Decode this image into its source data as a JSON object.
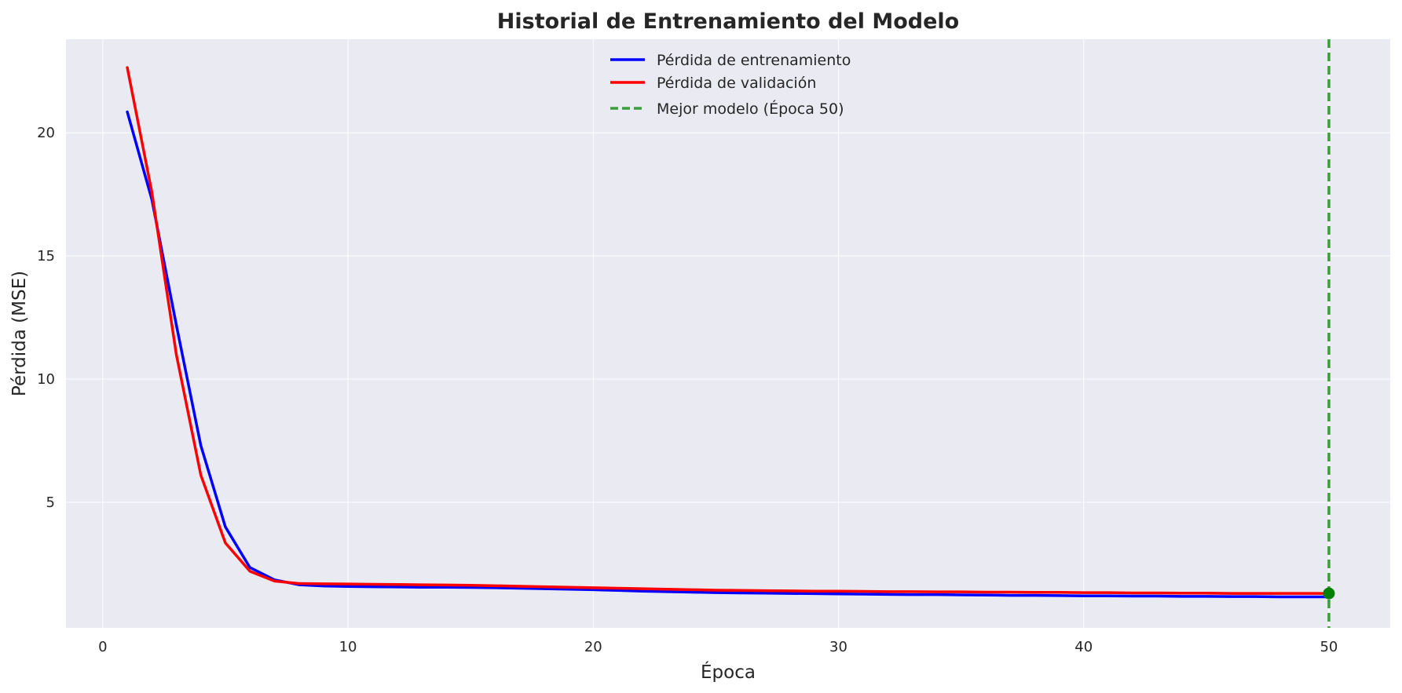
{
  "chart_data": {
    "type": "line",
    "title": "Historial de Entrenamiento del Modelo",
    "xlabel": "Época",
    "ylabel": "Pérdida (MSE)",
    "xlim": [
      -1.5,
      52.5
    ],
    "ylim": [
      -0.1,
      23.8
    ],
    "xticks": [
      0,
      10,
      20,
      30,
      40,
      50
    ],
    "yticks": [
      5,
      10,
      15,
      20
    ],
    "grid": true,
    "legend_position": "top-center",
    "background_color": "#eaeaf2",
    "x": [
      1,
      2,
      3,
      4,
      5,
      6,
      7,
      8,
      9,
      10,
      11,
      12,
      13,
      14,
      15,
      16,
      17,
      18,
      19,
      20,
      21,
      22,
      23,
      24,
      25,
      26,
      27,
      28,
      29,
      30,
      31,
      32,
      33,
      34,
      35,
      36,
      37,
      38,
      39,
      40,
      41,
      42,
      43,
      44,
      45,
      46,
      47,
      48,
      49,
      50
    ],
    "series": [
      {
        "name": "Pérdida de entrenamiento",
        "color": "#0000ff",
        "values": [
          20.85,
          17.3,
          12.2,
          7.3,
          4.0,
          2.35,
          1.85,
          1.65,
          1.6,
          1.58,
          1.57,
          1.56,
          1.55,
          1.55,
          1.54,
          1.53,
          1.51,
          1.49,
          1.47,
          1.45,
          1.42,
          1.39,
          1.37,
          1.35,
          1.33,
          1.32,
          1.31,
          1.3,
          1.29,
          1.28,
          1.27,
          1.26,
          1.25,
          1.25,
          1.24,
          1.23,
          1.22,
          1.22,
          1.21,
          1.2,
          1.2,
          1.19,
          1.19,
          1.18,
          1.18,
          1.17,
          1.17,
          1.16,
          1.16,
          1.16
        ]
      },
      {
        "name": "Pérdida de validación",
        "color": "#ff0000",
        "values": [
          22.65,
          17.6,
          11.0,
          6.1,
          3.35,
          2.2,
          1.8,
          1.7,
          1.69,
          1.68,
          1.67,
          1.66,
          1.65,
          1.64,
          1.63,
          1.61,
          1.59,
          1.57,
          1.55,
          1.53,
          1.51,
          1.49,
          1.47,
          1.45,
          1.43,
          1.42,
          1.41,
          1.4,
          1.39,
          1.39,
          1.38,
          1.37,
          1.37,
          1.36,
          1.36,
          1.35,
          1.35,
          1.34,
          1.34,
          1.33,
          1.33,
          1.32,
          1.32,
          1.31,
          1.31,
          1.3,
          1.3,
          1.3,
          1.3,
          1.3
        ]
      }
    ],
    "best_model": {
      "label": "Mejor modelo (Época 50)",
      "epoch": 50,
      "value": 1.3,
      "line_color": "#3a9e3a",
      "marker_color": "#008000"
    }
  }
}
